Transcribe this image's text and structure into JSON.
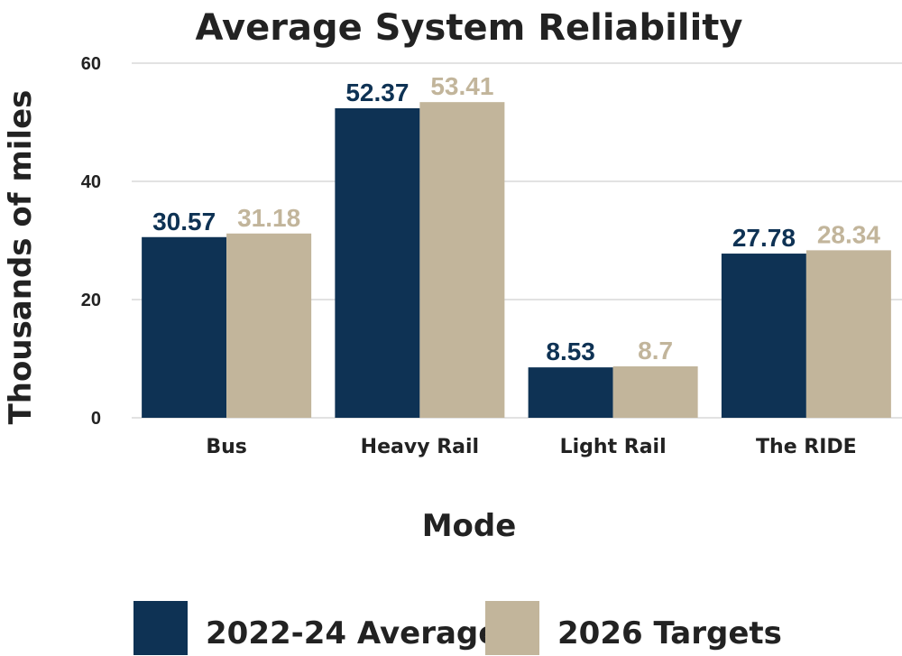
{
  "chart_data": {
    "type": "bar",
    "title": "Average System Reliability",
    "xlabel": "Mode",
    "ylabel": "Thousands of miles",
    "categories": [
      "Bus",
      "Heavy Rail",
      "Light Rail",
      "The RIDE"
    ],
    "series": [
      {
        "name": "2022-24 Average",
        "color": "#0e3254",
        "values": [
          30.57,
          52.37,
          8.53,
          27.78
        ],
        "labels": [
          "30.57",
          "52.37",
          "8.53",
          "27.78"
        ]
      },
      {
        "name": "2026 Targets",
        "color": "#c2b59b",
        "values": [
          31.18,
          53.41,
          8.7,
          28.34
        ],
        "labels": [
          "31.18",
          "53.41",
          "8.7",
          "28.34"
        ]
      }
    ],
    "ylim": [
      0,
      60
    ],
    "yticks": [
      0,
      20,
      40,
      60
    ],
    "ytick_labels": [
      "0",
      "20",
      "40",
      "60"
    ],
    "grid": true,
    "legend_position": "bottom"
  }
}
